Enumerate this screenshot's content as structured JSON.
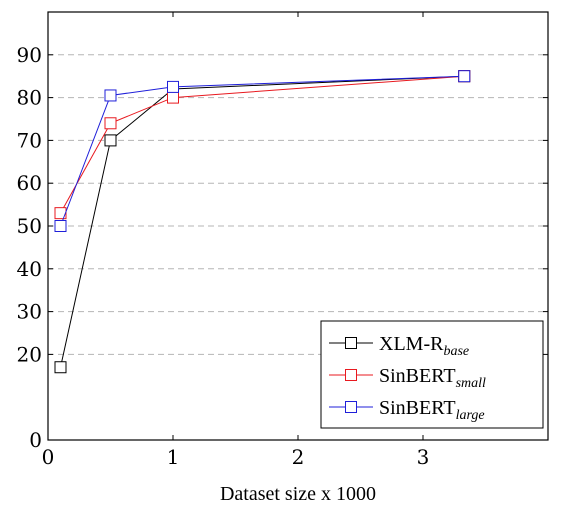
{
  "chart_data": {
    "type": "line",
    "title": "",
    "xlabel": "Dataset size x 1000",
    "ylabel": "",
    "xlim": [
      0,
      4
    ],
    "ylim": [
      0,
      100
    ],
    "xticks": [
      0,
      1,
      2,
      3
    ],
    "yticks": [
      0,
      20,
      30,
      40,
      50,
      60,
      70,
      80,
      90
    ],
    "grid": "horizontal-dashed",
    "legend_position": "bottom-right",
    "series": [
      {
        "name": "XLM-R",
        "name_sub": "base",
        "color": "#000000",
        "marker": "square-open",
        "x": [
          0.1,
          0.5,
          1.0,
          3.33
        ],
        "y": [
          17,
          70,
          82,
          85
        ]
      },
      {
        "name": "SinBERT",
        "name_sub": "small",
        "color": "#e8191f",
        "marker": "square-open",
        "x": [
          0.1,
          0.5,
          1.0,
          3.33
        ],
        "y": [
          53,
          74,
          80,
          85
        ]
      },
      {
        "name": "SinBERT",
        "name_sub": "large",
        "color": "#1f1fd9",
        "marker": "square-open",
        "x": [
          0.1,
          0.5,
          1.0,
          3.33
        ],
        "y": [
          50,
          80.5,
          82.5,
          85
        ]
      }
    ]
  }
}
